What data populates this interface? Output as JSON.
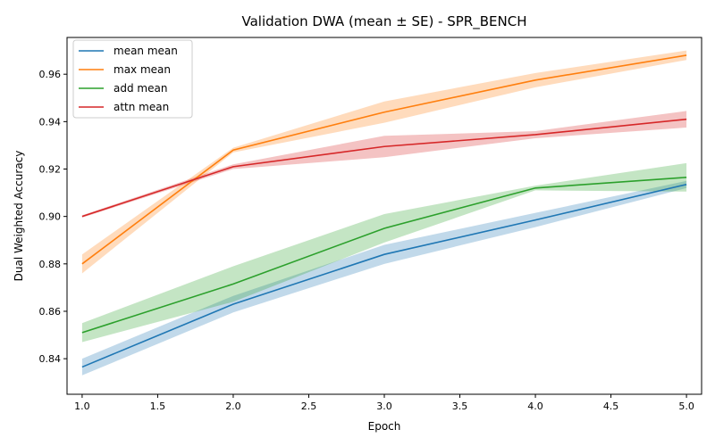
{
  "chart_data": {
    "type": "line",
    "title": "Validation DWA (mean ± SE) - SPR_BENCH",
    "xlabel": "Epoch",
    "ylabel": "Dual Weighted Accuracy",
    "xlim": [
      0.9,
      5.1
    ],
    "ylim": [
      0.825,
      0.9755
    ],
    "xticks": [
      "1.0",
      "1.5",
      "2.0",
      "2.5",
      "3.0",
      "3.5",
      "4.0",
      "4.5",
      "5.0"
    ],
    "yticks": [
      "0.84",
      "0.86",
      "0.88",
      "0.90",
      "0.92",
      "0.94",
      "0.96"
    ],
    "x": [
      1,
      2,
      3,
      4,
      5
    ],
    "legend_position": "top-left",
    "grid": false,
    "series": [
      {
        "name": "mean mean",
        "color": "#1f77b4",
        "values": [
          0.8365,
          0.863,
          0.884,
          0.8985,
          0.9135
        ],
        "se": [
          0.0035,
          0.0035,
          0.004,
          0.003,
          0.0015
        ]
      },
      {
        "name": "max mean",
        "color": "#ff7f0e",
        "values": [
          0.88,
          0.928,
          0.944,
          0.9575,
          0.968
        ],
        "se": [
          0.004,
          0.001,
          0.0045,
          0.003,
          0.002
        ]
      },
      {
        "name": "add mean",
        "color": "#2ca02c",
        "values": [
          0.851,
          0.8715,
          0.895,
          0.912,
          0.9165
        ],
        "se": [
          0.004,
          0.0075,
          0.006,
          0.001,
          0.006
        ]
      },
      {
        "name": "attn mean",
        "color": "#d62728",
        "values": [
          0.9,
          0.921,
          0.9295,
          0.9345,
          0.941
        ],
        "se": [
          0.0005,
          0.001,
          0.0045,
          0.0015,
          0.0035
        ]
      }
    ]
  }
}
